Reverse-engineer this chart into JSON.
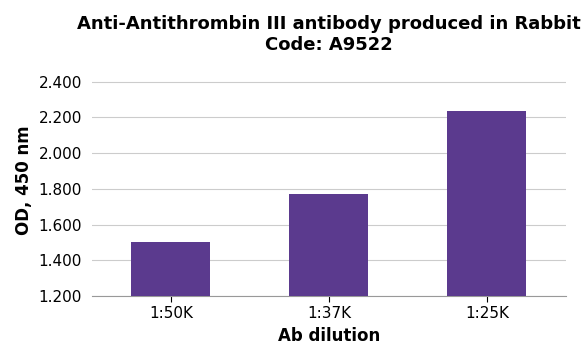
{
  "categories": [
    "1:50K",
    "1:37K",
    "1:25K"
  ],
  "values": [
    1.505,
    1.77,
    2.235
  ],
  "bar_color": "#5b3a8e",
  "title_line1": "Anti-Antithrombin III antibody produced in Rabbit",
  "title_line2": "Code: A9522",
  "xlabel": "Ab dilution",
  "ylabel": "OD, 450 nm",
  "ylim": [
    1.2,
    2.5
  ],
  "yticks": [
    1.2,
    1.4,
    1.6,
    1.8,
    2.0,
    2.2,
    2.4
  ],
  "title_fontsize": 13,
  "label_fontsize": 12,
  "tick_fontsize": 11,
  "background_color": "#ffffff",
  "grid_color": "#cccccc",
  "bar_width": 0.5
}
